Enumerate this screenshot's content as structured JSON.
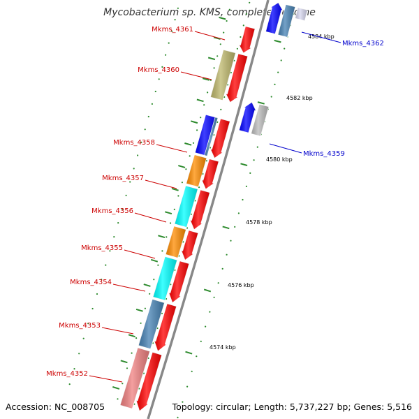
{
  "title": "Mycobacterium sp. KMS, complete genome",
  "footer": {
    "accession": "Accession: NC_008705",
    "topology": "Topology: circular; Length: 5,737,227 bp; Genes: 5,516"
  },
  "colors": {
    "forward_label": "#cc0000",
    "reverse_label": "#0000cc",
    "backbone": "#888888",
    "tick": "#2e8b2e"
  },
  "scale_labels": [
    "4584 kbp",
    "4582 kbp",
    "4580 kbp",
    "4578 kbp",
    "4576 kbp",
    "4574 kbp"
  ],
  "forward_genes": [
    {
      "name": "Mkms_4361",
      "cog_color": "#ff0000"
    },
    {
      "name": "Mkms_4360",
      "cog_color": "#bdb76b"
    },
    {
      "name": "Mkms_4358",
      "cog_color": "#0000ff"
    },
    {
      "name": "Mkms_4357",
      "cog_color": "#ff8c00"
    },
    {
      "name": "Mkms_4356",
      "cog_color": "#00ffff"
    },
    {
      "name": "Mkms_4355",
      "cog_color": "#ff8c00"
    },
    {
      "name": "Mkms_4354",
      "cog_color": "#00ffff"
    },
    {
      "name": "Mkms_4353",
      "cog_color": "#4682b4"
    },
    {
      "name": "Mkms_4352",
      "cog_color": "#f08080"
    }
  ],
  "reverse_genes": [
    {
      "name": "Mkms_4362",
      "cog_color": "#4682b4"
    },
    {
      "name": "Mkms_4359",
      "cog_color": "#bbbbbb"
    }
  ]
}
